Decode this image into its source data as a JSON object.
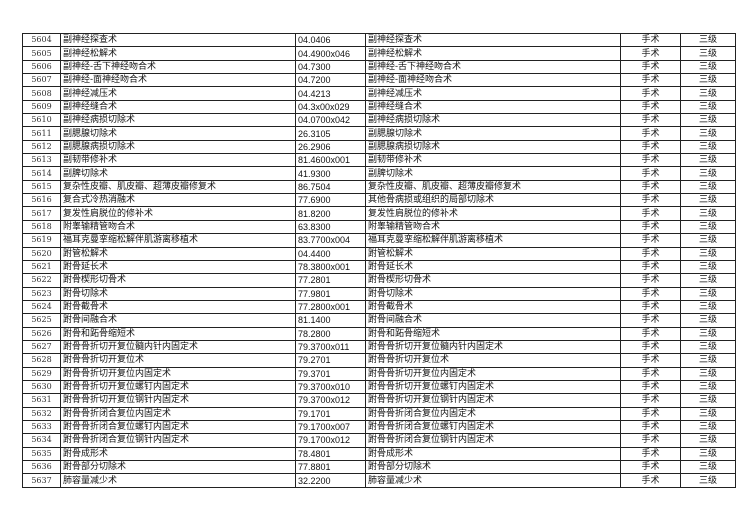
{
  "rows": [
    [
      "5604",
      "副神经探查术",
      "04.0406",
      "副神经探查术",
      "手术",
      "三级"
    ],
    [
      "5605",
      "副神经松解术",
      "04.4900x046",
      "副神经松解术",
      "手术",
      "三级"
    ],
    [
      "5606",
      "副神经-舌下神经吻合术",
      "04.7300",
      "副神经-舌下神经吻合术",
      "手术",
      "三级"
    ],
    [
      "5607",
      "副神经-面神经吻合术",
      "04.7200",
      "副神经-面神经吻合术",
      "手术",
      "三级"
    ],
    [
      "5608",
      "副神经减压术",
      "04.4213",
      "副神经减压术",
      "手术",
      "三级"
    ],
    [
      "5609",
      "副神经缝合术",
      "04.3x00x029",
      "副神经缝合术",
      "手术",
      "三级"
    ],
    [
      "5610",
      "副神经病损切除术",
      "04.0700x042",
      "副神经病损切除术",
      "手术",
      "三级"
    ],
    [
      "5611",
      "副腮腺切除术",
      "26.3105",
      "副腮腺切除术",
      "手术",
      "三级"
    ],
    [
      "5612",
      "副腮腺病损切除术",
      "26.2906",
      "副腮腺病损切除术",
      "手术",
      "三级"
    ],
    [
      "5613",
      "副韧带修补术",
      "81.4600x001",
      "副韧带修补术",
      "手术",
      "三级"
    ],
    [
      "5614",
      "副脾切除术",
      "41.9300",
      "副脾切除术",
      "手术",
      "三级"
    ],
    [
      "5615",
      "复杂性皮瓣、肌皮瓣、超薄皮瓣修复术",
      "86.7504",
      "复杂性皮瓣、肌皮瓣、超薄皮瓣修复术",
      "手术",
      "三级"
    ],
    [
      "5616",
      "复合式冷热消融术",
      "77.6900",
      "其他骨病损或组织的局部切除术",
      "手术",
      "三级"
    ],
    [
      "5617",
      "复发性肩脱位的修补术",
      "81.8200",
      "复发性肩脱位的修补术",
      "手术",
      "三级"
    ],
    [
      "5618",
      "附睾输精管吻合术",
      "63.8300",
      "附睾输精管吻合术",
      "手术",
      "三级"
    ],
    [
      "5619",
      "福耳克曼挛缩松解伴肌游离移植术",
      "83.7700x004",
      "福耳克曼挛缩松解伴肌游离移植术",
      "手术",
      "三级"
    ],
    [
      "5620",
      "跗管松解术",
      "04.4400",
      "跗管松解术",
      "手术",
      "三级"
    ],
    [
      "5621",
      "跗骨延长术",
      "78.3800x001",
      "跗骨延长术",
      "手术",
      "三级"
    ],
    [
      "5622",
      "跗骨楔形切骨术",
      "77.2801",
      "跗骨楔形切骨术",
      "手术",
      "三级"
    ],
    [
      "5623",
      "跗骨切除术",
      "77.9801",
      "跗骨切除术",
      "手术",
      "三级"
    ],
    [
      "5624",
      "跗骨截骨术",
      "77.2800x001",
      "跗骨截骨术",
      "手术",
      "三级"
    ],
    [
      "5625",
      "跗骨间融合术",
      "81.1400",
      "跗骨间融合术",
      "手术",
      "三级"
    ],
    [
      "5626",
      "跗骨和跖骨缩短术",
      "78.2800",
      "跗骨和跖骨缩短术",
      "手术",
      "三级"
    ],
    [
      "5627",
      "跗骨骨折切开复位髓内针内固定术",
      "79.3700x011",
      "跗骨骨折切开复位髓内针内固定术",
      "手术",
      "三级"
    ],
    [
      "5628",
      "跗骨骨折切开复位术",
      "79.2701",
      "跗骨骨折切开复位术",
      "手术",
      "三级"
    ],
    [
      "5629",
      "跗骨骨折切开复位内固定术",
      "79.3701",
      "跗骨骨折切开复位内固定术",
      "手术",
      "三级"
    ],
    [
      "5630",
      "跗骨骨折切开复位螺钉内固定术",
      "79.3700x010",
      "跗骨骨折切开复位螺钉内固定术",
      "手术",
      "三级"
    ],
    [
      "5631",
      "跗骨骨折切开复位钢针内固定术",
      "79.3700x012",
      "跗骨骨折切开复位钢针内固定术",
      "手术",
      "三级"
    ],
    [
      "5632",
      "跗骨骨折闭合复位内固定术",
      "79.1701",
      "跗骨骨折闭合复位内固定术",
      "手术",
      "三级"
    ],
    [
      "5633",
      "跗骨骨折闭合复位螺钉内固定术",
      "79.1700x007",
      "跗骨骨折闭合复位螺钉内固定术",
      "手术",
      "三级"
    ],
    [
      "5634",
      "跗骨骨折闭合复位钢针内固定术",
      "79.1700x012",
      "跗骨骨折闭合复位钢针内固定术",
      "手术",
      "三级"
    ],
    [
      "5635",
      "跗骨成形术",
      "78.4801",
      "跗骨成形术",
      "手术",
      "三级"
    ],
    [
      "5636",
      "跗骨部分切除术",
      "77.8801",
      "跗骨部分切除术",
      "手术",
      "三级"
    ],
    [
      "5637",
      "肺容量减少术",
      "32.2200",
      "肺容量减少术",
      "手术",
      "三级"
    ]
  ]
}
